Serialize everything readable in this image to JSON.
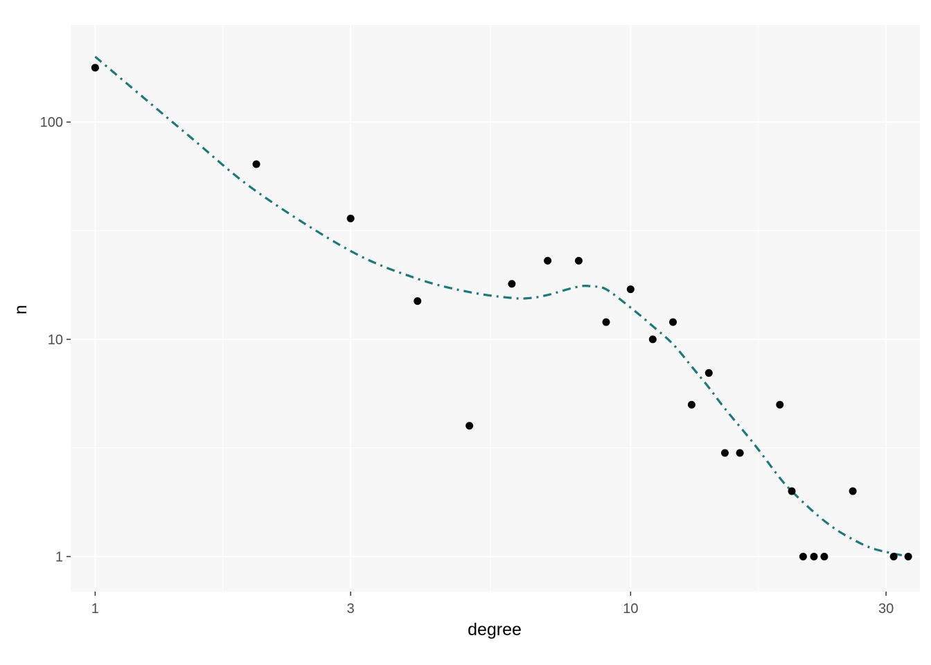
{
  "chart_data": {
    "type": "scatter",
    "title": "",
    "xlabel": "degree",
    "ylabel": "n",
    "x_scale": "log10",
    "y_scale": "log10",
    "xlim": [
      0.9,
      34.7
    ],
    "ylim": [
      0.69,
      280
    ],
    "x_ticks": [
      {
        "value": 1,
        "label": "1"
      },
      {
        "value": 3,
        "label": "3"
      },
      {
        "value": 10,
        "label": "10"
      },
      {
        "value": 30,
        "label": "30"
      }
    ],
    "y_ticks": [
      {
        "value": 1,
        "label": "1"
      },
      {
        "value": 10,
        "label": "10"
      },
      {
        "value": 100,
        "label": "100"
      }
    ],
    "x_minor_breaks": [
      1.732,
      5.477,
      17.32
    ],
    "y_minor_breaks": [
      3.162,
      31.62
    ],
    "grid": true,
    "colors": {
      "panel": "#f7f7f7",
      "grid": "#ffffff",
      "points": "#000000",
      "smooth": "#1a7a7a",
      "tick_text": "#4d4d4d"
    },
    "points": [
      {
        "x": 1,
        "y": 178
      },
      {
        "x": 2,
        "y": 64
      },
      {
        "x": 3,
        "y": 36
      },
      {
        "x": 4,
        "y": 15
      },
      {
        "x": 5,
        "y": 4
      },
      {
        "x": 6,
        "y": 18
      },
      {
        "x": 7,
        "y": 23
      },
      {
        "x": 8,
        "y": 23
      },
      {
        "x": 9,
        "y": 12
      },
      {
        "x": 10,
        "y": 17
      },
      {
        "x": 11,
        "y": 10
      },
      {
        "x": 12,
        "y": 12
      },
      {
        "x": 13,
        "y": 5
      },
      {
        "x": 14,
        "y": 7
      },
      {
        "x": 15,
        "y": 3
      },
      {
        "x": 16,
        "y": 3
      },
      {
        "x": 19,
        "y": 5
      },
      {
        "x": 20,
        "y": 2
      },
      {
        "x": 21,
        "y": 1
      },
      {
        "x": 22,
        "y": 1
      },
      {
        "x": 23,
        "y": 1
      },
      {
        "x": 26,
        "y": 2
      },
      {
        "x": 31,
        "y": 1
      },
      {
        "x": 33,
        "y": 1
      }
    ],
    "smooth_line": {
      "style": "dot-dash",
      "x": [
        1,
        1.5,
        2,
        3,
        4,
        5,
        6,
        6.5,
        7,
        8,
        8.5,
        9,
        10,
        11,
        12,
        13,
        14,
        15,
        17,
        19,
        20,
        22,
        24,
        26,
        28,
        30,
        33
      ],
      "y": [
        200,
        86,
        48,
        25.5,
        19,
        16.5,
        15.5,
        15.5,
        16,
        17.5,
        17.5,
        17,
        14,
        11.5,
        9.5,
        7.5,
        6,
        4.8,
        3.3,
        2.3,
        2,
        1.6,
        1.35,
        1.2,
        1.1,
        1.05,
        1.0
      ]
    }
  }
}
